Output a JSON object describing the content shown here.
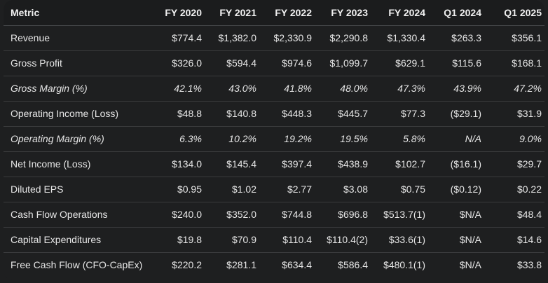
{
  "table": {
    "headers": [
      "Metric",
      "FY 2020",
      "FY 2021",
      "FY 2022",
      "FY 2023",
      "FY 2024",
      "Q1 2024",
      "Q1 2025"
    ],
    "rows": [
      {
        "cells": [
          "Revenue",
          "$774.4",
          "$1,382.0",
          "$2,330.9",
          "$2,290.8",
          "$1,330.4",
          "$263.3",
          "$356.1"
        ],
        "italic": false
      },
      {
        "cells": [
          "Gross Profit",
          "$326.0",
          "$594.4",
          "$974.6",
          "$1,099.7",
          "$629.1",
          "$115.6",
          "$168.1"
        ],
        "italic": false
      },
      {
        "cells": [
          "Gross Margin (%)",
          "42.1%",
          "43.0%",
          "41.8%",
          "48.0%",
          "47.3%",
          "43.9%",
          "47.2%"
        ],
        "italic": true
      },
      {
        "cells": [
          "Operating Income (Loss)",
          "$48.8",
          "$140.8",
          "$448.3",
          "$445.7",
          "$77.3",
          "($29.1)",
          "$31.9"
        ],
        "italic": false
      },
      {
        "cells": [
          "Operating Margin (%)",
          "6.3%",
          "10.2%",
          "19.2%",
          "19.5%",
          "5.8%",
          "N/A",
          "9.0%"
        ],
        "italic": true
      },
      {
        "cells": [
          "Net Income (Loss)",
          "$134.0",
          "$145.4",
          "$397.4",
          "$438.9",
          "$102.7",
          "($16.1)",
          "$29.7"
        ],
        "italic": false
      },
      {
        "cells": [
          "Diluted EPS",
          "$0.95",
          "$1.02",
          "$2.77",
          "$3.08",
          "$0.75",
          "($0.12)",
          "$0.22"
        ],
        "italic": false
      },
      {
        "cells": [
          "Cash Flow Operations",
          "$240.0",
          "$352.0",
          "$744.8",
          "$696.8",
          "$513.7(1)",
          "$N/A",
          "$48.4"
        ],
        "italic": false
      },
      {
        "cells": [
          "Capital Expenditures",
          "$19.8",
          "$70.9",
          "$110.4",
          "$110.4(2)",
          "$33.6(1)",
          "$N/A",
          "$14.6"
        ],
        "italic": false
      },
      {
        "cells": [
          "Free Cash Flow (CFO-CapEx)",
          "$220.2",
          "$281.1",
          "$634.4",
          "$586.4",
          "$480.1(1)",
          "$N/A",
          "$33.8"
        ],
        "italic": false
      }
    ]
  }
}
